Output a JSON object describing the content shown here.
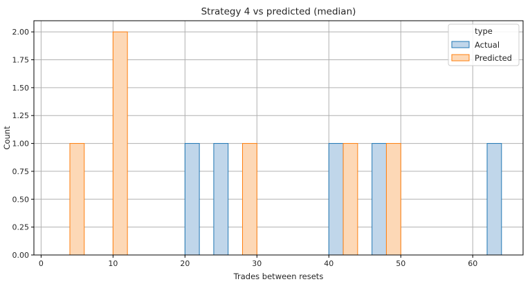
{
  "chart_data": {
    "type": "bar",
    "title": "Strategy 4 vs predicted (median)",
    "xlabel": "Trades between resets",
    "ylabel": "Count",
    "xlim": [
      -1,
      67
    ],
    "ylim": [
      0,
      2.1
    ],
    "xticks": [
      0,
      10,
      20,
      30,
      40,
      50,
      60
    ],
    "yticks": [
      "0.00",
      "0.25",
      "0.50",
      "0.75",
      "1.00",
      "1.25",
      "1.50",
      "1.75",
      "2.00"
    ],
    "grid": true,
    "legend": {
      "title": "type",
      "placement": "top-right"
    },
    "series": [
      {
        "name": "Actual",
        "fill": "#c0d6ea",
        "edge": "#1f77b4",
        "bins": [
          {
            "x0": 20,
            "x1": 22,
            "count": 1
          },
          {
            "x0": 24,
            "x1": 26,
            "count": 1
          },
          {
            "x0": 40,
            "x1": 42,
            "count": 1
          },
          {
            "x0": 46,
            "x1": 48,
            "count": 1
          },
          {
            "x0": 62,
            "x1": 64,
            "count": 1
          }
        ]
      },
      {
        "name": "Predicted",
        "fill": "#fdd8b6",
        "edge": "#ff7f0e",
        "bins": [
          {
            "x0": 4,
            "x1": 6,
            "count": 1
          },
          {
            "x0": 10,
            "x1": 12,
            "count": 2
          },
          {
            "x0": 28,
            "x1": 30,
            "count": 1
          },
          {
            "x0": 42,
            "x1": 44,
            "count": 1
          },
          {
            "x0": 48,
            "x1": 50,
            "count": 1
          }
        ]
      }
    ]
  }
}
